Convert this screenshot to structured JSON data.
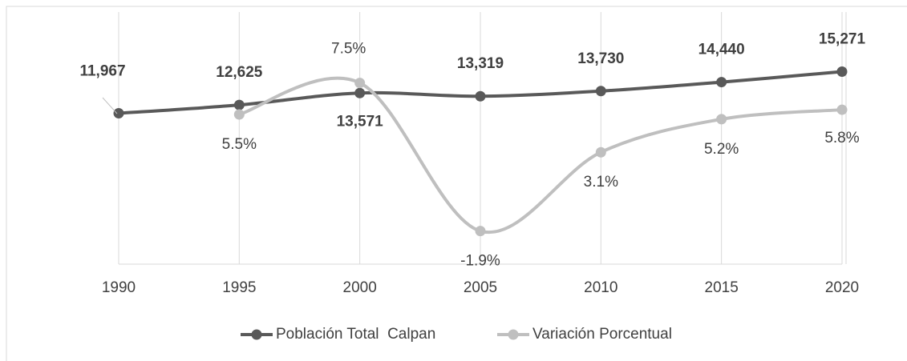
{
  "chart_data": {
    "type": "line",
    "categories": [
      "1990",
      "1995",
      "2000",
      "2005",
      "2010",
      "2015",
      "2020"
    ],
    "series": [
      {
        "name": "Población Total  Calpan",
        "color": "#595959",
        "values": [
          11967,
          12625,
          13571,
          13319,
          13730,
          14440,
          15271
        ],
        "value_labels": [
          "11,967",
          "12,625",
          "13,571",
          "13,319",
          "13,730",
          "14,440",
          "15,271"
        ]
      },
      {
        "name": "Variación Porcentual",
        "color": "#bfbfbf",
        "axis": "y2",
        "values": [
          null,
          5.5,
          7.5,
          -1.9,
          3.1,
          5.2,
          5.8
        ],
        "value_labels": [
          null,
          "5.5%",
          "7.5%",
          "-1.9%",
          "3.1%",
          "5.2%",
          "5.8%"
        ]
      }
    ],
    "ylim": [
      0,
      20000
    ],
    "y2lim": [
      -4,
      12
    ],
    "legend": "bottom"
  }
}
